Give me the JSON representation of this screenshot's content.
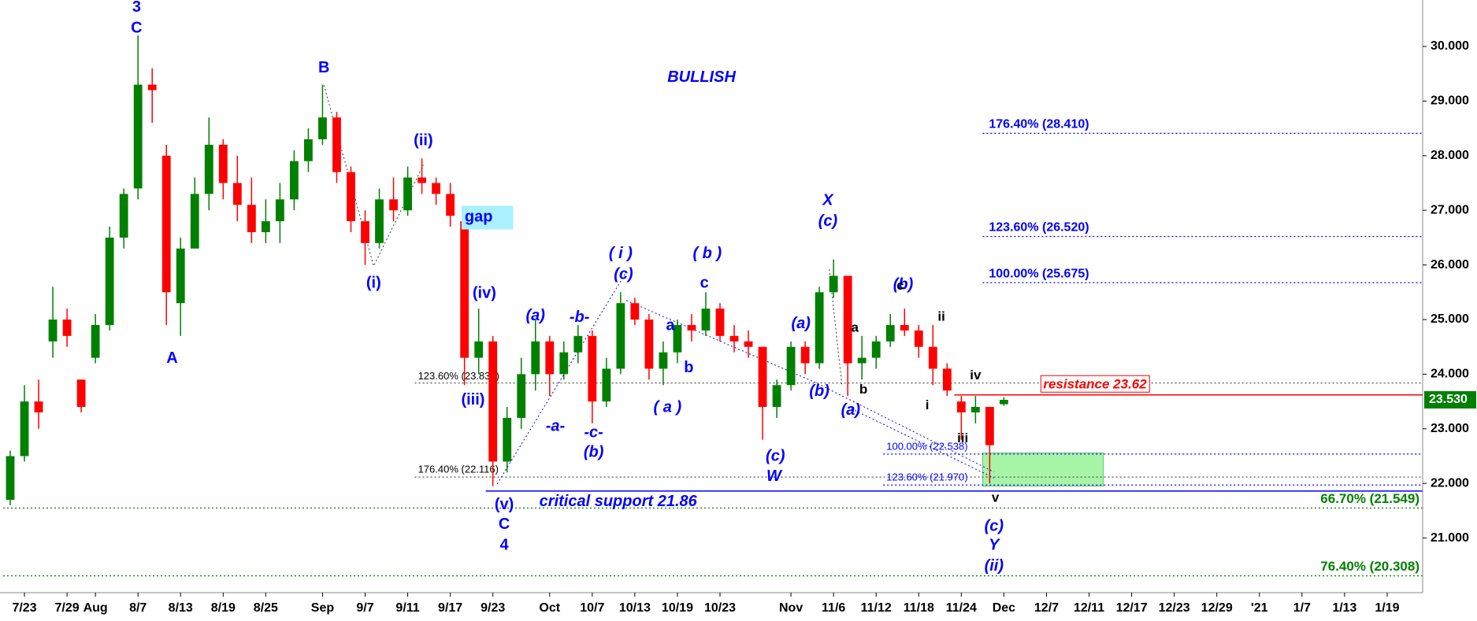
{
  "chart_data": {
    "type": "candlestick",
    "up_color": "#008000",
    "down_color": "#ff0000",
    "categories": [
      null,
      "7/23",
      null,
      null,
      "7/29",
      null,
      "Aug",
      null,
      null,
      "8/7",
      null,
      null,
      "8/13",
      null,
      null,
      "8/19",
      null,
      null,
      "8/25",
      null,
      null,
      null,
      "Sep",
      null,
      null,
      "9/7",
      null,
      null,
      "9/11",
      null,
      null,
      "9/17",
      null,
      null,
      "9/23",
      null,
      null,
      null,
      "Oct",
      null,
      null,
      "10/7",
      null,
      null,
      "10/13",
      null,
      null,
      "10/19",
      null,
      null,
      "10/23",
      null,
      null,
      null,
      null,
      "Nov",
      null,
      null,
      "11/6",
      null,
      null,
      "11/12",
      null,
      null,
      "11/18",
      null,
      null,
      "11/24",
      null,
      null,
      "Dec",
      null,
      null,
      "12/7",
      null,
      null,
      "12/11",
      null,
      null,
      "12/17",
      null,
      null,
      "12/23",
      null,
      null,
      "12/29",
      null,
      null,
      "'21",
      null,
      null,
      "1/7",
      null,
      null,
      "1/13",
      null,
      null,
      "1/19",
      null,
      null
    ],
    "open": [
      21.7,
      22.5,
      23.5,
      24.6,
      25.0,
      23.9,
      24.3,
      24.9,
      26.5,
      27.4,
      29.3,
      28.0,
      25.3,
      26.3,
      27.3,
      28.2,
      27.5,
      27.1,
      26.6,
      26.8,
      27.2,
      27.9,
      28.3,
      28.7,
      27.7,
      26.8,
      26.4,
      27.2,
      27.0,
      27.6,
      27.5,
      27.3,
      26.8,
      24.3,
      24.6,
      22.4,
      23.2,
      24.0,
      24.6,
      24.0,
      24.4,
      24.7,
      23.5,
      24.1,
      25.3,
      25.0,
      24.1,
      24.4,
      24.9,
      24.8,
      25.2,
      24.7,
      24.6,
      24.5,
      23.4,
      23.8,
      24.5,
      24.2,
      25.5,
      25.8,
      24.2,
      24.3,
      24.6,
      24.9,
      24.8,
      24.5,
      24.1,
      23.5,
      23.3,
      23.4,
      23.45,
      null,
      null,
      null,
      null,
      null,
      null,
      null,
      null,
      null,
      null,
      null,
      null,
      null,
      null,
      null,
      null,
      null,
      null,
      null,
      null,
      null,
      null,
      null,
      null,
      null,
      null,
      null,
      null,
      null
    ],
    "high": [
      22.6,
      23.8,
      23.9,
      25.6,
      25.2,
      23.9,
      25.1,
      26.7,
      27.4,
      30.2,
      29.6,
      28.2,
      26.5,
      27.6,
      28.7,
      28.3,
      28.0,
      27.6,
      27.2,
      27.5,
      28.1,
      28.5,
      29.3,
      28.8,
      27.8,
      27.0,
      27.4,
      27.6,
      27.8,
      27.95,
      27.6,
      27.5,
      26.9,
      25.2,
      24.7,
      23.4,
      24.3,
      25.0,
      24.7,
      24.6,
      24.9,
      24.8,
      24.3,
      25.5,
      25.4,
      25.1,
      24.6,
      25.0,
      25.1,
      25.5,
      25.3,
      24.9,
      24.8,
      24.5,
      23.9,
      24.6,
      24.6,
      25.6,
      26.1,
      25.8,
      24.7,
      24.7,
      25.1,
      25.2,
      24.9,
      24.9,
      24.2,
      23.6,
      23.6,
      23.4,
      23.58,
      null,
      null,
      null,
      null,
      null,
      null,
      null,
      null,
      null,
      null,
      null,
      null,
      null,
      null,
      null,
      null,
      null,
      null,
      null,
      null,
      null,
      null,
      null,
      null,
      null,
      null,
      null,
      null,
      null
    ],
    "low": [
      21.6,
      22.4,
      23.0,
      24.3,
      24.5,
      23.3,
      24.2,
      24.8,
      26.3,
      27.2,
      28.6,
      24.9,
      24.7,
      26.3,
      27.0,
      27.2,
      26.8,
      26.4,
      26.4,
      26.4,
      27.0,
      27.7,
      28.2,
      27.5,
      26.6,
      26.0,
      26.3,
      26.8,
      26.9,
      27.3,
      27.1,
      26.7,
      23.8,
      24.0,
      21.95,
      22.2,
      23.0,
      23.7,
      23.6,
      23.9,
      24.2,
      23.1,
      23.4,
      24.0,
      24.9,
      23.9,
      23.8,
      24.2,
      24.6,
      24.7,
      24.6,
      24.4,
      24.3,
      22.8,
      23.2,
      23.7,
      24.0,
      24.1,
      25.4,
      23.6,
      23.9,
      24.1,
      24.5,
      24.7,
      24.3,
      23.8,
      23.6,
      22.8,
      23.1,
      22.0,
      23.42,
      null,
      null,
      null,
      null,
      null,
      null,
      null,
      null,
      null,
      null,
      null,
      null,
      null,
      null,
      null,
      null,
      null,
      null,
      null,
      null,
      null,
      null,
      null,
      null,
      null,
      null,
      null,
      null,
      null
    ],
    "close": [
      22.5,
      23.5,
      23.3,
      25.0,
      24.7,
      23.4,
      24.9,
      26.5,
      27.3,
      29.3,
      29.2,
      25.5,
      26.3,
      27.3,
      28.2,
      27.5,
      27.1,
      26.6,
      26.8,
      27.2,
      27.9,
      28.3,
      28.7,
      27.7,
      26.8,
      26.4,
      27.2,
      27.0,
      27.6,
      27.5,
      27.3,
      26.9,
      24.3,
      24.6,
      22.4,
      23.2,
      24.0,
      24.6,
      24.0,
      24.4,
      24.7,
      23.5,
      24.1,
      25.3,
      25.0,
      24.1,
      24.4,
      24.9,
      24.8,
      25.2,
      24.7,
      24.6,
      24.5,
      23.4,
      23.8,
      24.5,
      24.2,
      25.5,
      25.8,
      24.2,
      24.3,
      24.6,
      24.9,
      24.8,
      24.5,
      24.1,
      23.7,
      23.3,
      23.4,
      22.7,
      23.53,
      null,
      null,
      null,
      null,
      null,
      null,
      null,
      null,
      null,
      null,
      null,
      null,
      null,
      null,
      null,
      null,
      null,
      null,
      null,
      null,
      null,
      null,
      null,
      null,
      null,
      null,
      null,
      null,
      null
    ],
    "ylim": [
      20.0,
      30.85
    ],
    "yticks": [
      {
        "value": 21,
        "label": "21.000"
      },
      {
        "value": 22,
        "label": "22.000"
      },
      {
        "value": 23,
        "label": "23.000"
      },
      {
        "value": 24,
        "label": "24.000"
      },
      {
        "value": 25,
        "label": "25.000"
      },
      {
        "value": 26,
        "label": "26.000"
      },
      {
        "value": 27,
        "label": "27.000"
      },
      {
        "value": 28,
        "label": "28.000"
      },
      {
        "value": 29,
        "label": "29.000"
      },
      {
        "value": 30,
        "label": "30.000"
      }
    ],
    "last_price": {
      "value": 23.53,
      "label": "23.530",
      "color": "#008000"
    },
    "levels": [
      {
        "value": 28.41,
        "label": "176.40% (28.410)",
        "color": "#0000ff",
        "line": "dotted",
        "x_start": 69
      },
      {
        "value": 26.52,
        "label": "123.60% (26.520)",
        "color": "#0000ff",
        "line": "dotted",
        "x_start": 69
      },
      {
        "value": 25.675,
        "label": "100.00% (25.675)",
        "color": "#0000ff",
        "line": "dotted",
        "x_start": 69
      },
      {
        "value": 23.838,
        "label": "123.60% (23.838)",
        "color": "#555555",
        "line": "dotted",
        "x_start": 29
      },
      {
        "value": 22.116,
        "label": "176.40% (22.116)",
        "color": "#555555",
        "line": "dotted",
        "x_start": 29
      },
      {
        "value": 22.538,
        "label": "100.00% (22.538)",
        "color": "#0000ff",
        "line": "dotted",
        "x_start": 62
      },
      {
        "value": 21.97,
        "label": "123.60% (21.970)",
        "color": "#0000ff",
        "line": "dotted",
        "x_start": 62
      },
      {
        "value": 23.62,
        "label": "resistance 23.62",
        "color": "#ff0000",
        "line": "solid",
        "x_start": 67
      },
      {
        "value": 21.86,
        "label": "critical support 21.86",
        "color": "#0000ff",
        "line": "solid",
        "x_start": 34
      },
      {
        "value": 21.549,
        "label": "66.70% (21.549)",
        "color": "#008000",
        "line": "dotted",
        "x_start": 0
      },
      {
        "value": 20.308,
        "label": "76.40% (20.308)",
        "color": "#008000",
        "line": "dotted",
        "x_start": 0
      }
    ],
    "zone": {
      "low": 21.95,
      "high": 22.56,
      "x": [
        69,
        77
      ],
      "color": "#a6f5a6"
    },
    "trendlines": [
      {
        "color": "#333333",
        "points": [
          [
            22.1,
            29.29
          ],
          [
            25.6,
            25.98
          ],
          [
            29.1,
            27.83
          ]
        ]
      },
      {
        "color": "#0000ff",
        "points": [
          [
            34.3,
            21.99
          ],
          [
            43.4,
            25.87
          ]
        ]
      },
      {
        "color": "#0000ff",
        "points": [
          [
            43.4,
            25.35
          ],
          [
            56.7,
            23.85
          ],
          [
            69.3,
            22.21
          ]
        ]
      },
      {
        "color": "#333333",
        "points": [
          [
            57.7,
            25.92
          ],
          [
            58.6,
            23.77
          ]
        ]
      },
      {
        "color": "#0000ff",
        "points": [
          [
            59,
            23.4
          ],
          [
            69.3,
            22.1
          ]
        ]
      }
    ],
    "annotations": [
      {
        "text": "3",
        "x": 8.9,
        "y": 30.71,
        "color": "#0000ff",
        "italic": false
      },
      {
        "text": "C",
        "x": 8.9,
        "y": 30.33,
        "color": "#0000ff",
        "italic": false
      },
      {
        "text": "A",
        "x": 11.4,
        "y": 24.28,
        "color": "#0000ff",
        "italic": false
      },
      {
        "text": "B",
        "x": 22.1,
        "y": 29.6,
        "color": "#0000ff",
        "italic": false
      },
      {
        "text": "(ii)",
        "x": 29.1,
        "y": 28.27,
        "color": "#0000ff",
        "italic": false
      },
      {
        "text": "(i)",
        "x": 25.6,
        "y": 25.66,
        "color": "#0000ff",
        "italic": false
      },
      {
        "text": "gap",
        "x": 33.0,
        "y": 26.87,
        "color": "#0000ff",
        "italic": false,
        "background": "#aaf0ff"
      },
      {
        "text": "(iv)",
        "x": 33.4,
        "y": 25.47,
        "color": "#0000ff",
        "italic": false
      },
      {
        "text": "(iii)",
        "x": 32.6,
        "y": 23.52,
        "color": "#0000ff",
        "italic": false
      },
      {
        "text": "(v)",
        "x": 34.8,
        "y": 21.6,
        "color": "#0000ff",
        "italic": false
      },
      {
        "text": "C",
        "x": 34.8,
        "y": 21.24,
        "color": "#0000ff",
        "italic": false
      },
      {
        "text": "4",
        "x": 34.8,
        "y": 20.86,
        "color": "#0000ff",
        "italic": false
      },
      {
        "text": "(a)",
        "x": 37.0,
        "y": 25.06,
        "color": "#0000ff",
        "italic": true
      },
      {
        "text": "-b-",
        "x": 40.1,
        "y": 25.03,
        "color": "#0000ff",
        "italic": true
      },
      {
        "text": "-a-",
        "x": 38.4,
        "y": 23.04,
        "color": "#0000ff",
        "italic": true
      },
      {
        "text": "-c-",
        "x": 41.1,
        "y": 22.92,
        "color": "#0000ff",
        "italic": true
      },
      {
        "text": "(b)",
        "x": 41.1,
        "y": 22.56,
        "color": "#0000ff",
        "italic": true
      },
      {
        "text": "( i )",
        "x": 43.0,
        "y": 26.2,
        "color": "#0000ff",
        "italic": true
      },
      {
        "text": "(c)",
        "x": 43.2,
        "y": 25.82,
        "color": "#0000ff",
        "italic": true
      },
      {
        "text": "( b )",
        "x": 49.1,
        "y": 26.2,
        "color": "#0000ff",
        "italic": true
      },
      {
        "text": "c",
        "x": 48.9,
        "y": 25.66,
        "color": "#0000ff",
        "italic": false
      },
      {
        "text": "a",
        "x": 46.5,
        "y": 24.88,
        "color": "#0000ff",
        "italic": false
      },
      {
        "text": "b",
        "x": 47.8,
        "y": 24.11,
        "color": "#0000ff",
        "italic": false
      },
      {
        "text": "( a )",
        "x": 46.3,
        "y": 23.38,
        "color": "#0000ff",
        "italic": true
      },
      {
        "text": "(c)",
        "x": 53.9,
        "y": 22.49,
        "color": "#0000ff",
        "italic": true
      },
      {
        "text": "W",
        "x": 53.8,
        "y": 22.12,
        "color": "#0000ff",
        "italic": true
      },
      {
        "text": "(a)",
        "x": 55.7,
        "y": 24.92,
        "color": "#0000ff",
        "italic": true
      },
      {
        "text": "(b)",
        "x": 57.0,
        "y": 23.68,
        "color": "#0000ff",
        "italic": true
      },
      {
        "text": "X",
        "x": 57.6,
        "y": 27.17,
        "color": "#0000ff",
        "italic": true
      },
      {
        "text": "(c)",
        "x": 57.6,
        "y": 26.79,
        "color": "#0000ff",
        "italic": true
      },
      {
        "text": "(b)",
        "x": 62.9,
        "y": 25.63,
        "color": "#0000ff",
        "italic": true
      },
      {
        "text": "(a)",
        "x": 59.2,
        "y": 23.33,
        "color": "#0000ff",
        "italic": true
      },
      {
        "text": "a",
        "x": 59.5,
        "y": 24.84,
        "color": "#000000",
        "italic": false
      },
      {
        "text": "b",
        "x": 60.1,
        "y": 23.71,
        "color": "#000000",
        "italic": false
      },
      {
        "text": "c",
        "x": 62.7,
        "y": 25.61,
        "color": "#000000",
        "italic": false
      },
      {
        "text": "ii",
        "x": 65.6,
        "y": 25.04,
        "color": "#000000",
        "italic": false
      },
      {
        "text": "i",
        "x": 64.6,
        "y": 23.42,
        "color": "#000000",
        "italic": false
      },
      {
        "text": "iv",
        "x": 68.0,
        "y": 23.97,
        "color": "#000000",
        "italic": false
      },
      {
        "text": "iii",
        "x": 67.1,
        "y": 22.82,
        "color": "#000000",
        "italic": false
      },
      {
        "text": "v",
        "x": 69.4,
        "y": 21.73,
        "color": "#000000",
        "italic": false
      },
      {
        "text": "(c)",
        "x": 69.3,
        "y": 21.21,
        "color": "#0000ff",
        "italic": true
      },
      {
        "text": "Y",
        "x": 69.3,
        "y": 20.86,
        "color": "#0000ff",
        "italic": true
      },
      {
        "text": "(ii)",
        "x": 69.3,
        "y": 20.48,
        "color": "#0000ff",
        "italic": true
      },
      {
        "text": "BULLISH",
        "x": 48.7,
        "y": 29.43,
        "color": "#0000ff",
        "italic": true
      }
    ]
  }
}
